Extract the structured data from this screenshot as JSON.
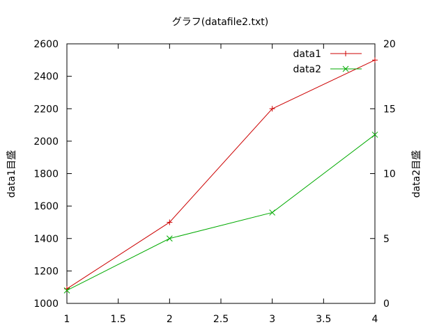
{
  "chart_data": {
    "type": "line",
    "title": "グラフ(datafile2.txt)",
    "xlabel": "",
    "ylabel": "data1目盛",
    "y2label": "data2目盛",
    "xlim": [
      1,
      4
    ],
    "ylim": [
      1000,
      2600
    ],
    "y2lim": [
      0,
      20
    ],
    "x_ticks": [
      "1",
      "1.5",
      "2",
      "2.5",
      "3",
      "3.5",
      "4"
    ],
    "y_ticks": [
      "1000",
      "1200",
      "1400",
      "1600",
      "1800",
      "2000",
      "2200",
      "2400",
      "2600"
    ],
    "y2_ticks": [
      "0",
      "5",
      "10",
      "15",
      "20"
    ],
    "grid": false,
    "legend_position": "top-right",
    "series": [
      {
        "name": "data1",
        "axis": "y",
        "color": "#cc0000",
        "marker": "plus",
        "x": [
          1,
          2,
          3,
          4
        ],
        "values": [
          1090,
          1500,
          2200,
          2500
        ]
      },
      {
        "name": "data2",
        "axis": "y2",
        "color": "#00aa00",
        "marker": "cross",
        "x": [
          1,
          2,
          3,
          4
        ],
        "values": [
          1,
          5,
          7,
          13
        ]
      }
    ]
  }
}
